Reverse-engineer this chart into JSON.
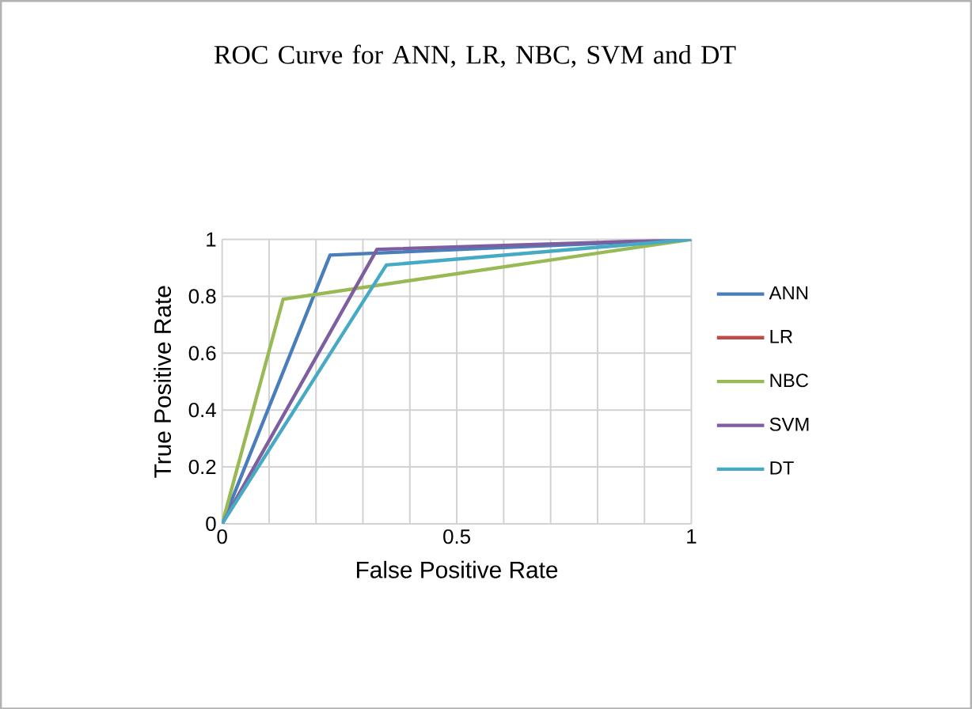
{
  "chart_data": {
    "type": "line",
    "title": "ROC Curve for ANN, LR, NBC, SVM and DT",
    "xlabel": "False Positive Rate",
    "ylabel": "True Positive Rate",
    "xlim": [
      0,
      1
    ],
    "ylim": [
      0,
      1
    ],
    "xticks": [
      0,
      {
        "value": 0.1,
        "label": null
      },
      {
        "value": 0.2,
        "label": null
      },
      {
        "value": 0.3,
        "label": null
      },
      {
        "value": 0.4,
        "label": null
      },
      0.5,
      {
        "value": 0.6,
        "label": null
      },
      {
        "value": 0.7,
        "label": null
      },
      {
        "value": 0.8,
        "label": null
      },
      {
        "value": 0.9,
        "label": null
      },
      1
    ],
    "yticks": [
      0,
      0.2,
      0.4,
      0.6,
      0.8,
      1
    ],
    "grid": true,
    "legend": "right",
    "marker": "none",
    "series": [
      {
        "name": "ANN",
        "color": "#4a7ebb",
        "x": [
          0,
          0.23,
          1
        ],
        "values": [
          0,
          0.945,
          1
        ]
      },
      {
        "name": "LR",
        "color": "#be4b48",
        "values": [
          null,
          null,
          null
        ]
      },
      {
        "name": "NBC",
        "color": "#98b954",
        "x": [
          0,
          0.13,
          1
        ],
        "values": [
          0,
          0.79,
          1
        ]
      },
      {
        "name": "SVM",
        "color": "#7d5fa0",
        "x": [
          0,
          0.33,
          1
        ],
        "values": [
          0,
          0.965,
          1
        ]
      },
      {
        "name": "DT",
        "color": "#46aac5",
        "x": [
          0,
          0.35,
          1
        ],
        "values": [
          0,
          0.91,
          1
        ]
      }
    ]
  }
}
